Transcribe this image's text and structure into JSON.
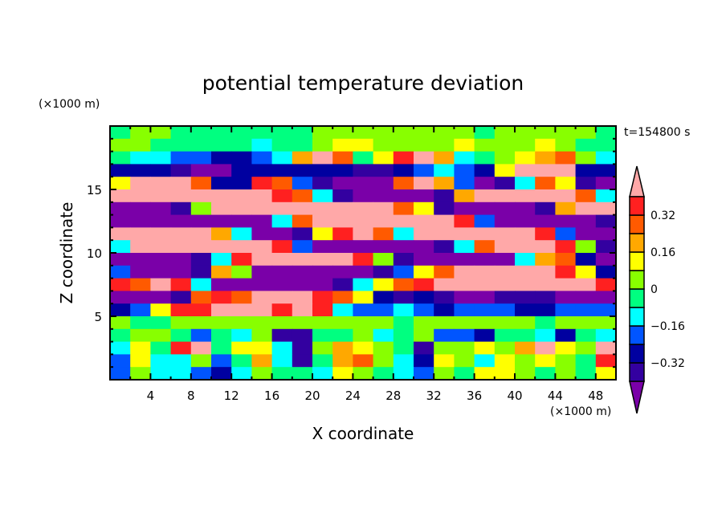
{
  "chart_data": {
    "type": "heatmap",
    "subtype": "filled-contour",
    "title": "potential temperature deviation",
    "xlabel": "X coordinate",
    "ylabel": "Z coordinate",
    "x_unit_label": "(×1000 m)",
    "y_unit_label": "(×1000 m)",
    "time_label": "t=154800 s",
    "xlim": [
      0,
      50
    ],
    "ylim": [
      0,
      20
    ],
    "x_ticks": [
      4,
      8,
      12,
      16,
      20,
      24,
      28,
      32,
      36,
      40,
      44,
      48
    ],
    "y_ticks": [
      5,
      10,
      15
    ],
    "grid": false,
    "colorbar": {
      "levels": [
        -0.4,
        -0.32,
        -0.24,
        -0.16,
        -0.08,
        0,
        0.08,
        0.16,
        0.24,
        0.32,
        0.4
      ],
      "colors": [
        "#7a00a8",
        "#3300a0",
        "#0000a0",
        "#0055ff",
        "#00ffff",
        "#00ff80",
        "#88ff00",
        "#ffff00",
        "#ffa800",
        "#ff5a00",
        "#ff2020",
        "#ffa8a8"
      ],
      "tick_labels": [
        "0.32",
        "0.16",
        "0",
        "−0.16",
        "−0.32"
      ],
      "tick_values": [
        0.32,
        0.16,
        0,
        -0.16,
        -0.32
      ],
      "extend": "both"
    },
    "grid_x_centers": [
      1,
      3,
      5,
      7,
      9,
      11,
      13,
      15,
      17,
      19,
      21,
      23,
      25,
      27,
      29,
      31,
      33,
      35,
      37,
      39,
      41,
      43,
      45,
      47,
      49
    ],
    "grid_z_centers_top_to_bottom": [
      19.5,
      18.5,
      17.5,
      16.5,
      15.5,
      14.5,
      13.5,
      12.5,
      11.5,
      10.5,
      9.5,
      8.5,
      7.5,
      6.5,
      5.5,
      4.5,
      3.5,
      2.5,
      1.5,
      0.5
    ],
    "values": [
      [
        -0.04,
        0.04,
        0.04,
        -0.04,
        -0.04,
        -0.04,
        -0.04,
        -0.04,
        -0.04,
        -0.04,
        0.04,
        0.04,
        0.04,
        0.04,
        0.04,
        0.04,
        0.04,
        0.04,
        -0.04,
        0.04,
        0.04,
        0.04,
        0.04,
        0.04,
        -0.04
      ],
      [
        0.04,
        0.04,
        -0.04,
        -0.04,
        -0.04,
        -0.04,
        -0.04,
        -0.12,
        -0.04,
        -0.04,
        0.04,
        0.12,
        0.12,
        0.04,
        0.04,
        0.04,
        0.04,
        0.12,
        0.04,
        0.04,
        0.04,
        0.12,
        0.04,
        -0.04,
        -0.04
      ],
      [
        -0.04,
        -0.12,
        -0.12,
        -0.2,
        -0.2,
        -0.28,
        -0.28,
        -0.2,
        -0.12,
        0.2,
        0.5,
        0.28,
        -0.04,
        0.12,
        0.36,
        0.5,
        0.2,
        -0.12,
        -0.04,
        0.04,
        0.12,
        0.2,
        0.28,
        0.04,
        -0.12
      ],
      [
        -0.28,
        -0.28,
        -0.28,
        -0.36,
        -0.5,
        -0.5,
        -0.28,
        -0.28,
        -0.28,
        -0.28,
        -0.28,
        -0.28,
        -0.36,
        -0.36,
        -0.28,
        -0.2,
        -0.12,
        -0.2,
        -0.28,
        0.12,
        0.5,
        0.5,
        0.5,
        -0.28,
        -0.28
      ],
      [
        0.12,
        0.5,
        0.5,
        0.5,
        0.28,
        -0.28,
        -0.28,
        0.36,
        0.28,
        -0.2,
        -0.36,
        -0.5,
        -0.5,
        -0.5,
        0.28,
        0.5,
        0.2,
        -0.2,
        -0.5,
        -0.36,
        -0.12,
        0.28,
        0.12,
        -0.36,
        -0.5
      ],
      [
        0.5,
        0.5,
        0.5,
        0.5,
        0.5,
        0.5,
        0.5,
        0.5,
        0.36,
        0.28,
        -0.12,
        -0.36,
        -0.5,
        -0.5,
        -0.5,
        -0.5,
        -0.36,
        0.2,
        0.5,
        0.5,
        0.5,
        0.5,
        0.5,
        0.28,
        -0.12
      ],
      [
        -0.5,
        -0.5,
        -0.5,
        -0.36,
        0.04,
        0.5,
        0.5,
        0.5,
        0.5,
        0.5,
        0.5,
        0.5,
        0.5,
        0.5,
        0.28,
        0.12,
        -0.36,
        -0.5,
        -0.5,
        -0.5,
        -0.5,
        -0.36,
        0.2,
        0.5,
        0.5
      ],
      [
        -0.5,
        -0.5,
        -0.5,
        -0.5,
        -0.5,
        -0.5,
        -0.5,
        -0.5,
        -0.12,
        0.28,
        0.5,
        0.5,
        0.5,
        0.5,
        0.5,
        0.5,
        0.5,
        0.36,
        -0.2,
        -0.5,
        -0.5,
        -0.5,
        -0.5,
        -0.5,
        -0.36
      ],
      [
        0.5,
        0.5,
        0.5,
        0.5,
        0.5,
        0.2,
        -0.12,
        -0.5,
        -0.5,
        -0.36,
        0.12,
        0.36,
        0.5,
        0.28,
        -0.12,
        0.5,
        0.5,
        0.5,
        0.5,
        0.5,
        0.5,
        0.36,
        -0.2,
        -0.5,
        -0.5
      ],
      [
        -0.12,
        0.5,
        0.5,
        0.5,
        0.5,
        0.5,
        0.5,
        0.5,
        0.36,
        -0.2,
        -0.5,
        -0.5,
        -0.5,
        -0.5,
        -0.5,
        -0.5,
        -0.36,
        -0.12,
        0.28,
        0.5,
        0.5,
        0.5,
        0.36,
        0.04,
        -0.36
      ],
      [
        -0.5,
        -0.5,
        -0.5,
        -0.5,
        -0.36,
        -0.12,
        0.36,
        0.5,
        0.5,
        0.5,
        0.5,
        0.5,
        0.36,
        0.04,
        -0.36,
        -0.5,
        -0.5,
        -0.5,
        -0.5,
        -0.5,
        -0.12,
        0.2,
        0.28,
        -0.28,
        -0.5
      ],
      [
        -0.2,
        -0.5,
        -0.5,
        -0.5,
        -0.36,
        0.2,
        0.04,
        -0.5,
        -0.5,
        -0.5,
        -0.5,
        -0.5,
        -0.5,
        -0.36,
        -0.2,
        0.12,
        0.28,
        0.5,
        0.5,
        0.5,
        0.5,
        0.5,
        0.36,
        0.12,
        -0.28
      ],
      [
        0.36,
        0.28,
        0.5,
        0.36,
        -0.12,
        -0.5,
        -0.5,
        -0.5,
        -0.5,
        -0.5,
        -0.5,
        -0.36,
        -0.12,
        0.12,
        0.28,
        0.36,
        0.5,
        0.5,
        0.5,
        0.5,
        0.5,
        0.5,
        0.5,
        0.5,
        0.36
      ],
      [
        -0.5,
        -0.5,
        -0.5,
        -0.36,
        0.28,
        0.36,
        0.28,
        0.5,
        0.5,
        0.5,
        0.36,
        0.28,
        0.12,
        -0.28,
        -0.36,
        -0.28,
        -0.36,
        -0.5,
        -0.5,
        -0.36,
        -0.36,
        -0.36,
        -0.5,
        -0.5,
        -0.5
      ],
      [
        -0.28,
        -0.2,
        0.12,
        0.36,
        0.36,
        0.5,
        0.5,
        0.5,
        0.36,
        0.5,
        0.36,
        -0.12,
        -0.2,
        -0.2,
        -0.12,
        -0.2,
        -0.28,
        -0.2,
        -0.2,
        -0.2,
        -0.28,
        -0.28,
        -0.2,
        -0.2,
        -0.2
      ],
      [
        0.04,
        -0.04,
        -0.04,
        0.04,
        0.04,
        0.04,
        0.04,
        0.04,
        0.04,
        0.04,
        0.04,
        0.04,
        0.04,
        0.04,
        -0.04,
        0.04,
        0.04,
        0.04,
        0.04,
        0.04,
        0.04,
        -0.04,
        0.04,
        0.04,
        0.04
      ],
      [
        -0.04,
        0.04,
        0.04,
        -0.04,
        -0.2,
        -0.04,
        -0.12,
        0.04,
        -0.36,
        -0.36,
        -0.04,
        -0.04,
        0.04,
        -0.12,
        -0.04,
        0.04,
        -0.2,
        -0.2,
        -0.28,
        -0.04,
        -0.04,
        -0.12,
        -0.28,
        -0.04,
        -0.12
      ],
      [
        -0.12,
        0.12,
        -0.04,
        0.36,
        0.5,
        -0.04,
        0.12,
        0.12,
        -0.12,
        -0.36,
        0.04,
        0.2,
        0.12,
        0.04,
        -0.04,
        -0.36,
        0.04,
        0.04,
        0.12,
        0.04,
        0.2,
        0.5,
        0.12,
        0.04,
        0.5
      ],
      [
        -0.2,
        0.12,
        -0.12,
        -0.12,
        0.04,
        -0.2,
        -0.04,
        0.2,
        -0.12,
        -0.36,
        -0.04,
        0.2,
        0.28,
        0.04,
        -0.12,
        -0.28,
        0.12,
        0.04,
        -0.12,
        0.12,
        0.04,
        0.12,
        0.04,
        -0.04,
        0.36
      ],
      [
        -0.2,
        0.04,
        -0.12,
        -0.12,
        -0.2,
        -0.28,
        -0.12,
        0.04,
        -0.04,
        -0.04,
        -0.12,
        0.12,
        0.04,
        -0.04,
        -0.12,
        -0.2,
        0.04,
        -0.04,
        0.12,
        0.12,
        0.04,
        -0.04,
        0.04,
        -0.04,
        0.12
      ]
    ]
  }
}
